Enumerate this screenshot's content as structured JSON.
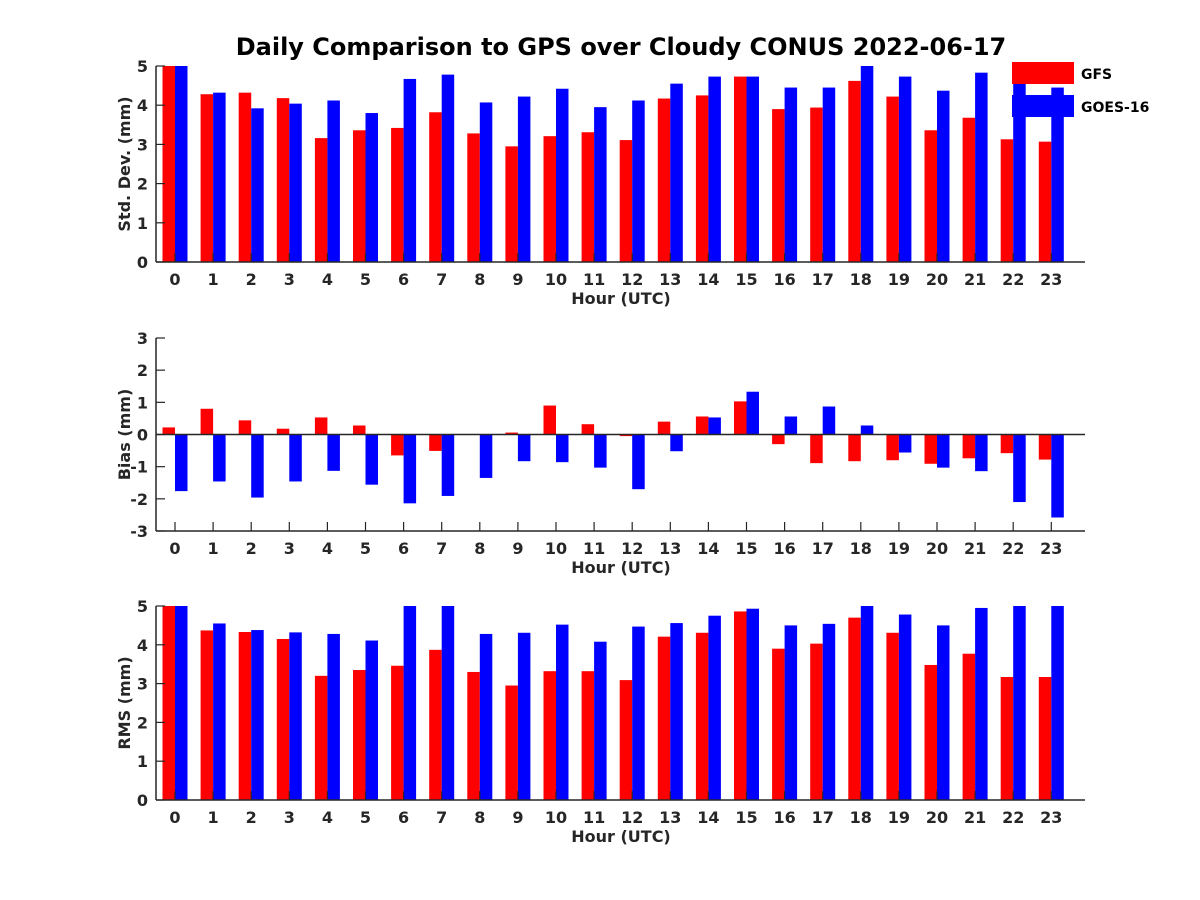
{
  "title": "Daily Comparison to GPS over Cloudy CONUS 2022-06-17",
  "legend": {
    "items": [
      {
        "label": "GFS",
        "color": "#ff0000"
      },
      {
        "label": "GOES-16",
        "color": "#0000ff"
      }
    ],
    "placement": "top-right, outside plot area"
  },
  "chart_data": [
    {
      "type": "bar",
      "xlabel": "Hour (UTC)",
      "ylabel": "Std. Dev. (mm)",
      "ylim": [
        0,
        5
      ],
      "yticks": [
        0,
        1,
        2,
        3,
        4,
        5
      ],
      "categories": [
        "0",
        "1",
        "2",
        "3",
        "4",
        "5",
        "6",
        "7",
        "8",
        "9",
        "10",
        "11",
        "12",
        "13",
        "14",
        "15",
        "16",
        "17",
        "18",
        "19",
        "20",
        "21",
        "22",
        "23"
      ],
      "series": [
        {
          "name": "GFS",
          "color": "#ff0000",
          "values": [
            5.0,
            4.28,
            4.32,
            4.18,
            3.16,
            3.36,
            3.42,
            3.82,
            3.28,
            2.95,
            3.21,
            3.31,
            3.11,
            4.17,
            4.25,
            4.73,
            3.9,
            3.94,
            4.62,
            4.22,
            3.36,
            3.68,
            3.13,
            3.07
          ]
        },
        {
          "name": "GOES-16",
          "color": "#0000ff",
          "values": [
            5.0,
            4.32,
            3.92,
            4.04,
            4.12,
            3.8,
            4.67,
            4.78,
            4.07,
            4.22,
            4.42,
            3.95,
            4.12,
            4.55,
            4.73,
            4.73,
            4.45,
            4.45,
            5.0,
            4.73,
            4.37,
            4.83,
            5.0,
            4.45
          ]
        }
      ]
    },
    {
      "type": "bar",
      "xlabel": "Hour (UTC)",
      "ylabel": "Bias (mm)",
      "ylim": [
        -3,
        3
      ],
      "yticks": [
        -3,
        -2,
        -1,
        0,
        1,
        2,
        3
      ],
      "categories": [
        "0",
        "1",
        "2",
        "3",
        "4",
        "5",
        "6",
        "7",
        "8",
        "9",
        "10",
        "11",
        "12",
        "13",
        "14",
        "15",
        "16",
        "17",
        "18",
        "19",
        "20",
        "21",
        "22",
        "23"
      ],
      "series": [
        {
          "name": "GFS",
          "color": "#ff0000",
          "values": [
            0.22,
            0.8,
            0.44,
            0.18,
            0.53,
            0.28,
            -0.65,
            -0.51,
            0.0,
            0.06,
            0.9,
            0.32,
            -0.05,
            0.4,
            0.56,
            1.03,
            -0.3,
            -0.89,
            -0.83,
            -0.8,
            -0.91,
            -0.74,
            -0.58,
            -0.78
          ]
        },
        {
          "name": "GOES-16",
          "color": "#0000ff",
          "values": [
            -1.76,
            -1.46,
            -1.96,
            -1.46,
            -1.13,
            -1.56,
            -2.14,
            -1.91,
            -1.35,
            -0.83,
            -0.86,
            -1.03,
            -1.7,
            -0.52,
            0.53,
            1.33,
            0.56,
            0.87,
            0.28,
            -0.56,
            -1.03,
            -1.14,
            -2.1,
            -2.58
          ]
        }
      ]
    },
    {
      "type": "bar",
      "xlabel": "Hour (UTC)",
      "ylabel": "RMS (mm)",
      "ylim": [
        0,
        5
      ],
      "yticks": [
        0,
        1,
        2,
        3,
        4,
        5
      ],
      "categories": [
        "0",
        "1",
        "2",
        "3",
        "4",
        "5",
        "6",
        "7",
        "8",
        "9",
        "10",
        "11",
        "12",
        "13",
        "14",
        "15",
        "16",
        "17",
        "18",
        "19",
        "20",
        "21",
        "22",
        "23"
      ],
      "series": [
        {
          "name": "GFS",
          "color": "#ff0000",
          "values": [
            5.0,
            4.37,
            4.33,
            4.15,
            3.2,
            3.35,
            3.46,
            3.87,
            3.3,
            2.95,
            3.32,
            3.32,
            3.09,
            4.21,
            4.31,
            4.86,
            3.9,
            4.03,
            4.7,
            4.31,
            3.48,
            3.77,
            3.17,
            3.17
          ]
        },
        {
          "name": "GOES-16",
          "color": "#0000ff",
          "values": [
            5.0,
            4.55,
            4.38,
            4.32,
            4.28,
            4.11,
            5.0,
            5.0,
            4.28,
            4.31,
            4.52,
            4.08,
            4.47,
            4.56,
            4.75,
            4.93,
            4.5,
            4.54,
            5.0,
            4.78,
            4.5,
            4.95,
            5.0,
            5.0
          ]
        }
      ]
    }
  ]
}
